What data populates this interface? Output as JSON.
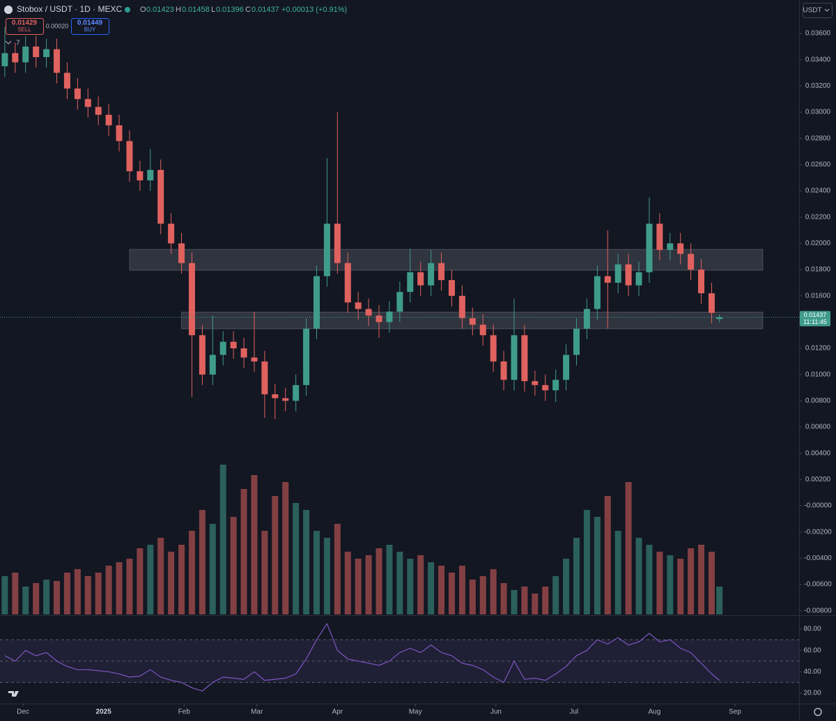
{
  "header": {
    "symbol": "Stobox / USDT · 1D · MEXC",
    "open_label": "O",
    "open": "0.01423",
    "high_label": "H",
    "high": "0.01458",
    "low_label": "L",
    "low": "0.01396",
    "close_label": "C",
    "close": "0.01437",
    "change": "+0.00013 (+0.91%)",
    "sell_price": "0.01429",
    "sell_label": "SELL",
    "spread": "0.00020",
    "buy_price": "0.01449",
    "buy_label": "BUY",
    "indicators": "7",
    "currency": "USDT"
  },
  "chart_data": {
    "type": "candlestick",
    "up_color": "#3f9c8b",
    "down_color": "#e0625f",
    "x": [
      -7,
      -3,
      1,
      5,
      9,
      13,
      17,
      21,
      25,
      29,
      33,
      37,
      41,
      45,
      49,
      53,
      57,
      61,
      65,
      69,
      73,
      77,
      81,
      85,
      89,
      93,
      97,
      101,
      105,
      109,
      113,
      117,
      121,
      125,
      129,
      133,
      137,
      141,
      145,
      149,
      153,
      157,
      161,
      165,
      169,
      173,
      177,
      181,
      185,
      189,
      193,
      197,
      201,
      205,
      209,
      213,
      217,
      221,
      225,
      229,
      233,
      237,
      241,
      245,
      249,
      253,
      257,
      261,
      265,
      268
    ],
    "open": [
      0.0335,
      0.0345,
      0.0338,
      0.035,
      0.0342,
      0.0348,
      0.033,
      0.0318,
      0.031,
      0.0304,
      0.0298,
      0.029,
      0.0278,
      0.0255,
      0.0248,
      0.0256,
      0.0215,
      0.02,
      0.0185,
      0.013,
      0.01,
      0.0115,
      0.0125,
      0.012,
      0.0113,
      0.011,
      0.0085,
      0.0082,
      0.008,
      0.0092,
      0.0135,
      0.0175,
      0.0215,
      0.0185,
      0.0155,
      0.015,
      0.0145,
      0.014,
      0.0148,
      0.0163,
      0.0178,
      0.0168,
      0.0185,
      0.0172,
      0.016,
      0.0143,
      0.0138,
      0.013,
      0.011,
      0.0096,
      0.013,
      0.0095,
      0.0092,
      0.0088,
      0.0096,
      0.0115,
      0.0135,
      0.015,
      0.0175,
      0.017,
      0.0184,
      0.0168,
      0.0178,
      0.0215,
      0.0195,
      0.02,
      0.0192,
      0.018,
      0.0162,
      0.01423
    ],
    "high": [
      0.0365,
      0.0353,
      0.0358,
      0.0358,
      0.0356,
      0.0356,
      0.0338,
      0.0326,
      0.0318,
      0.0312,
      0.0306,
      0.0298,
      0.0286,
      0.0263,
      0.0272,
      0.0264,
      0.0223,
      0.0208,
      0.0193,
      0.0138,
      0.0145,
      0.0133,
      0.0133,
      0.0128,
      0.0148,
      0.0118,
      0.0093,
      0.009,
      0.01,
      0.0143,
      0.0183,
      0.0265,
      0.03,
      0.0193,
      0.0163,
      0.0158,
      0.0153,
      0.0156,
      0.0171,
      0.0196,
      0.0186,
      0.0195,
      0.0193,
      0.018,
      0.0168,
      0.0151,
      0.0146,
      0.0138,
      0.0118,
      0.0158,
      0.0138,
      0.0103,
      0.01,
      0.0104,
      0.0123,
      0.0143,
      0.0158,
      0.0183,
      0.021,
      0.0192,
      0.0192,
      0.0186,
      0.0235,
      0.0223,
      0.0208,
      0.0208,
      0.02,
      0.0188,
      0.017,
      0.01458
    ],
    "low": [
      0.0327,
      0.033,
      0.033,
      0.0334,
      0.0334,
      0.0322,
      0.031,
      0.0302,
      0.0296,
      0.029,
      0.0282,
      0.027,
      0.0247,
      0.024,
      0.024,
      0.0207,
      0.0192,
      0.0177,
      0.0083,
      0.0092,
      0.0092,
      0.0107,
      0.0112,
      0.0105,
      0.0102,
      0.0067,
      0.0066,
      0.0072,
      0.0072,
      0.0084,
      0.0127,
      0.0167,
      0.0177,
      0.0147,
      0.0142,
      0.0137,
      0.0128,
      0.0132,
      0.014,
      0.0155,
      0.016,
      0.016,
      0.0164,
      0.0152,
      0.0135,
      0.013,
      0.0122,
      0.0102,
      0.0088,
      0.0088,
      0.0087,
      0.0084,
      0.008,
      0.0079,
      0.0088,
      0.0107,
      0.0127,
      0.0142,
      0.0135,
      0.0162,
      0.016,
      0.016,
      0.017,
      0.0187,
      0.0187,
      0.0184,
      0.0172,
      0.0154,
      0.0139,
      0.01396
    ],
    "close": [
      0.0345,
      0.0338,
      0.035,
      0.0342,
      0.0348,
      0.033,
      0.0318,
      0.031,
      0.0304,
      0.0298,
      0.029,
      0.0278,
      0.0255,
      0.0248,
      0.0256,
      0.0215,
      0.02,
      0.0185,
      0.013,
      0.01,
      0.0115,
      0.0125,
      0.012,
      0.0113,
      0.011,
      0.0085,
      0.0082,
      0.008,
      0.0092,
      0.0135,
      0.0175,
      0.0215,
      0.0185,
      0.0155,
      0.015,
      0.0145,
      0.014,
      0.0148,
      0.0163,
      0.0178,
      0.0168,
      0.0185,
      0.0172,
      0.016,
      0.0143,
      0.0138,
      0.013,
      0.011,
      0.0096,
      0.013,
      0.0095,
      0.0092,
      0.0088,
      0.0096,
      0.0115,
      0.0135,
      0.015,
      0.0175,
      0.017,
      0.0184,
      0.0168,
      0.0178,
      0.0215,
      0.0195,
      0.02,
      0.0192,
      0.018,
      0.0162,
      0.0147,
      0.01437
    ],
    "volume": [
      55,
      60,
      40,
      45,
      50,
      48,
      60,
      65,
      55,
      60,
      70,
      75,
      80,
      95,
      100,
      110,
      90,
      100,
      120,
      150,
      130,
      215,
      140,
      180,
      200,
      120,
      170,
      190,
      160,
      150,
      120,
      110,
      130,
      90,
      80,
      85,
      95,
      100,
      90,
      80,
      85,
      75,
      70,
      60,
      70,
      50,
      55,
      65,
      45,
      35,
      40,
      30,
      40,
      55,
      80,
      110,
      150,
      140,
      170,
      120,
      190,
      110,
      100,
      90,
      85,
      80,
      95,
      100,
      90,
      40
    ],
    "rsi": [
      55,
      50,
      60,
      55,
      58,
      50,
      45,
      42,
      42,
      41,
      40,
      38,
      35,
      36,
      42,
      35,
      32,
      30,
      25,
      22,
      30,
      35,
      34,
      33,
      40,
      32,
      33,
      34,
      38,
      52,
      70,
      85,
      60,
      52,
      50,
      48,
      46,
      50,
      58,
      62,
      58,
      65,
      58,
      55,
      48,
      46,
      42,
      35,
      30,
      50,
      33,
      34,
      32,
      38,
      45,
      55,
      60,
      70,
      66,
      72,
      65,
      68,
      76,
      68,
      70,
      62,
      58,
      48,
      38,
      32
    ],
    "rsi_color": "#7e57c2",
    "rsi_levels": [
      30,
      50,
      70
    ],
    "rsi_band": [
      30,
      70
    ],
    "zones": [
      {
        "x": [
          41,
          284.7
        ],
        "y": [
          0.01795,
          0.01954
        ]
      },
      {
        "x": [
          61,
          284.7
        ],
        "y": [
          0.01349,
          0.01476
        ]
      }
    ],
    "countdown": "11:11:45",
    "xlim": [
      -8.85,
      298.65
    ],
    "ylim": [
      -0.00828,
      0.03855
    ],
    "rsi_ylim": [
      10.2,
      92.4
    ],
    "xticks": [
      {
        "value": 0,
        "label": "Dec"
      },
      {
        "value": 31,
        "label": "2025"
      },
      {
        "value": 62,
        "label": "Feb"
      },
      {
        "value": 90,
        "label": "Mar"
      },
      {
        "value": 121,
        "label": "Apr"
      },
      {
        "value": 151,
        "label": "May"
      },
      {
        "value": 182,
        "label": "Jun"
      },
      {
        "value": 212,
        "label": "Jul"
      },
      {
        "value": 243,
        "label": "Aug"
      },
      {
        "value": 274,
        "label": "Sep"
      }
    ],
    "yticks": [
      {
        "value": 0.036,
        "label": "0.03600"
      },
      {
        "value": 0.034,
        "label": "0.03400"
      },
      {
        "value": 0.032,
        "label": "0.03200"
      },
      {
        "value": 0.03,
        "label": "0.03000"
      },
      {
        "value": 0.028,
        "label": "0.02800"
      },
      {
        "value": 0.026,
        "label": "0.02600"
      },
      {
        "value": 0.024,
        "label": "0.02400"
      },
      {
        "value": 0.022,
        "label": "0.02200"
      },
      {
        "value": 0.02,
        "label": "0.02000"
      },
      {
        "value": 0.018,
        "label": "0.01800"
      },
      {
        "value": 0.016,
        "label": "0.01600"
      },
      {
        "value": 0.014,
        "label": "0.01400"
      },
      {
        "value": 0.012,
        "label": "0.01200"
      },
      {
        "value": 0.01,
        "label": "0.01000"
      },
      {
        "value": 0.008,
        "label": "0.00800"
      },
      {
        "value": 0.006,
        "label": "0.00600"
      },
      {
        "value": 0.004,
        "label": "0.00400"
      },
      {
        "value": 0.002,
        "label": "0.00200"
      },
      {
        "value": 0,
        "label": "-0.00000"
      },
      {
        "value": -0.002,
        "label": "-0.00200"
      },
      {
        "value": -0.004,
        "label": "-0.00400"
      },
      {
        "value": -0.006,
        "label": "-0.00600"
      },
      {
        "value": -0.008,
        "label": "-0.00800"
      }
    ],
    "rsi_ticks": [
      {
        "value": 80,
        "label": "80.00"
      },
      {
        "value": 60,
        "label": "60.00"
      },
      {
        "value": 40,
        "label": "40.00"
      },
      {
        "value": 20,
        "label": "20.00"
      }
    ]
  }
}
